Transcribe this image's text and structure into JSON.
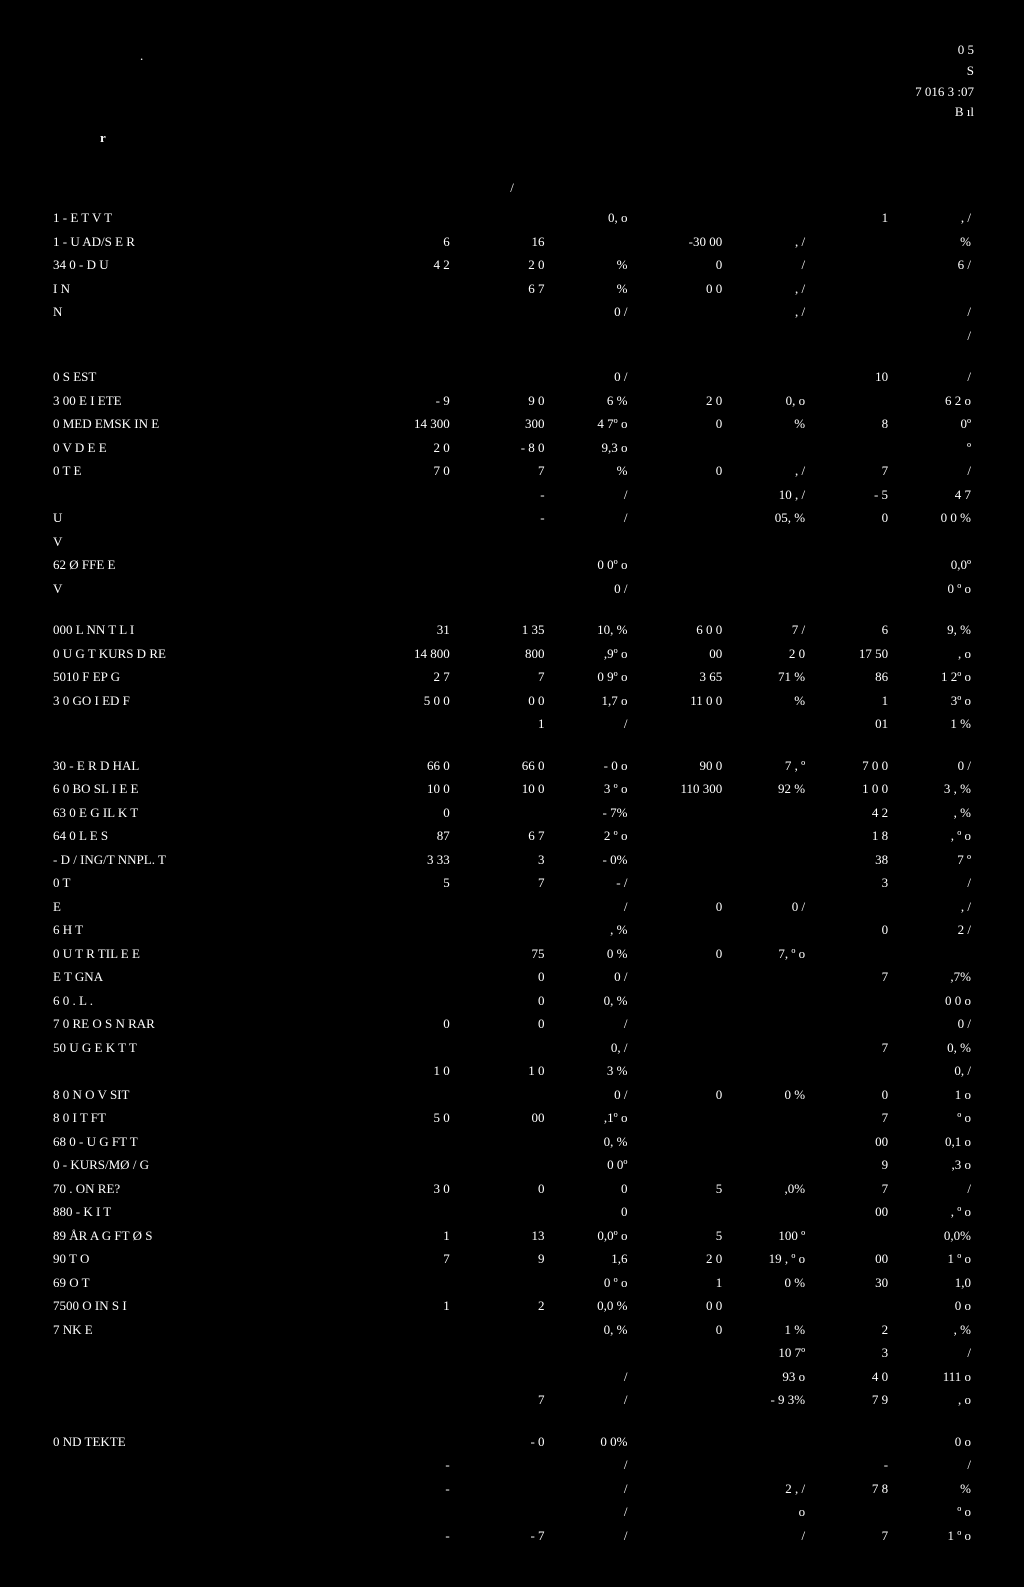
{
  "header": {
    "topRight1": "0  5",
    "topRight2": "S",
    "topRight3": "7     016    3 :07",
    "topRight4": "B  ıl",
    "dot": ".",
    "r": "r",
    "slash": "/"
  },
  "rows": [
    {
      "label": "1    -           E  T     V    T",
      "a": "",
      "b": "",
      "c": "0,  o",
      "d": "",
      "e": "",
      "f": "1",
      "g": ",  /"
    },
    {
      "label": "1    - U    AD/S E     R",
      "a": "6",
      "b": "16",
      "c": "",
      "d": "-30 00",
      "e": ",  /",
      "f": "",
      "g": "%"
    },
    {
      "label": "34  0 - D          U",
      "a": "4 2",
      "b": "2 0",
      "c": "%",
      "d": "0",
      "e": "/",
      "f": "",
      "g": "6 /"
    },
    {
      "label": "     I       N",
      "a": "",
      "b": "6 7",
      "c": "%",
      "d": "0 0",
      "e": ",  /",
      "f": "",
      "g": ""
    },
    {
      "label": "            N",
      "a": "",
      "b": "",
      "c": "0  /",
      "d": "",
      "e": ",  /",
      "f": "",
      "g": "/"
    },
    {
      "label": "",
      "a": "",
      "b": "",
      "c": "",
      "d": "",
      "e": "",
      "f": "",
      "g": "/"
    },
    {
      "spacer": true
    },
    {
      "label": "  0   S       EST",
      "a": "",
      "b": "",
      "c": "0 /",
      "d": "",
      "e": "",
      "f": "10",
      "g": "/"
    },
    {
      "label": "3  00   E     I ETE",
      "a": "-  9",
      "b": "9   0",
      "c": "6 %",
      "d": "2  0",
      "e": "0,  o",
      "f": "",
      "g": "6  2 o"
    },
    {
      "label": "  0  MED EMSK    IN  E",
      "a": "14 300",
      "b": "300",
      "c": "4 7º o",
      "d": "0",
      "e": "%",
      "f": "8",
      "g": "0º"
    },
    {
      "label": "  0    V     D     E     E",
      "a": "2   0",
      "b": "- 8 0",
      "c": "9,3 o",
      "d": "",
      "e": "",
      "f": "",
      "g": "º"
    },
    {
      "label": "  0     T     E",
      "a": "7 0",
      "b": "7",
      "c": "%",
      "d": "0",
      "e": ",  /",
      "f": "7",
      "g": "/"
    },
    {
      "label": "",
      "a": "",
      "b": "-",
      "c": "/",
      "d": "",
      "e": "10 ,  /",
      "f": "-  5",
      "g": "4 7"
    },
    {
      "label": "U",
      "a": "",
      "b": "-",
      "c": "/",
      "d": "",
      "e": "05, %",
      "f": "0",
      "g": "0  0 %"
    },
    {
      "label": "V",
      "spacer": false,
      "a": "",
      "b": "",
      "c": "",
      "d": "",
      "e": "",
      "f": "",
      "g": ""
    },
    {
      "label": "  62  Ø    FFE     E",
      "a": "",
      "b": "",
      "c": "0 0º o",
      "d": "",
      "e": "",
      "f": "",
      "g": "0,0º"
    },
    {
      "label": "    V",
      "a": "",
      "b": "",
      "c": "0  /",
      "d": "",
      "e": "",
      "f": "",
      "g": "0  º o"
    },
    {
      "spacer": true
    },
    {
      "label": "000  L  NN T  L        I",
      "a": "31",
      "b": "1  35",
      "c": "10, %",
      "d": "6  0 0",
      "e": "7 /",
      "f": "6",
      "g": "9, %"
    },
    {
      "label": "  0   U G  T       KURS    D  RE",
      "a": "14 800",
      "b": "800",
      "c": ",9º o",
      "d": "00",
      "e": "2  0",
      "f": "17  50",
      "g": ",  o"
    },
    {
      "label": "5010  F   EP   G",
      "a": "2 7",
      "b": "7",
      "c": "0 9º o",
      "d": "3  65",
      "e": "71  %",
      "f": "86",
      "g": "1 2º o"
    },
    {
      "label": " 3 0  GO    I          ED F",
      "a": "5 0 0",
      "b": "0 0",
      "c": "1,7 o",
      "d": "11 0 0",
      "e": "%",
      "f": "1",
      "g": "3º o"
    },
    {
      "label": "",
      "a": "",
      "b": "1",
      "c": "/",
      "d": "",
      "e": "",
      "f": "01",
      "g": "1  %"
    },
    {
      "spacer": true
    },
    {
      "label": " 30  - E  R D  HAL",
      "a": "66  0",
      "b": "66  0",
      "c": "-  0 o",
      "d": "90 0",
      "e": "7 ,  º",
      "f": "7  0 0",
      "g": "0  /"
    },
    {
      "label": "6  0  BO  SL I    E     E",
      "a": "10   0",
      "b": "10   0",
      "c": "3  º o",
      "d": "110 300",
      "e": "92  %",
      "f": "1  0 0",
      "g": "3 , %"
    },
    {
      "label": "63 0  E    G  IL    K      T",
      "a": "0",
      "b": "",
      "c": "-  7%",
      "d": "",
      "e": "",
      "f": "4  2",
      "g": ",  %"
    },
    {
      "label": "64 0  L  E   S",
      "a": "87",
      "b": "6  7",
      "c": "2  º o",
      "d": "",
      "e": "",
      "f": "1  8",
      "g": ",  º o"
    },
    {
      "label": "  - D        /    ING/T  NNPL.   T",
      "a": "3   33",
      "b": "3",
      "c": "-  0%",
      "d": "",
      "e": "",
      "f": "38",
      "g": "7  º"
    },
    {
      "label": "  0         T",
      "a": "5",
      "b": "7",
      "c": "-   /",
      "d": "",
      "e": "",
      "f": "3",
      "g": "/"
    },
    {
      "label": "         E",
      "a": "",
      "b": "",
      "c": "/",
      "d": "0",
      "e": "0  /",
      "f": "",
      "g": ",  /"
    },
    {
      "label": "6        H  T",
      "a": "",
      "b": "",
      "c": ",  %",
      "d": "",
      "e": "",
      "f": "0",
      "g": "2 /"
    },
    {
      "label": "  0 U  T  R TIL  E   E",
      "a": "",
      "b": "75",
      "c": "0  %",
      "d": "0",
      "e": "7,  º o",
      "f": "",
      "g": ""
    },
    {
      "label": "        E     T       GNA",
      "a": "",
      "b": "0",
      "c": "0  /",
      "d": "",
      "e": "",
      "f": "7",
      "g": ",7%"
    },
    {
      "label": "6  0    .     L   .",
      "a": "",
      "b": "0",
      "c": "0,  %",
      "d": "",
      "e": "",
      "f": "",
      "g": "0 0 o"
    },
    {
      "label": "7 0  RE     O S       N      RAR",
      "a": "0",
      "b": "0",
      "c": "/",
      "d": "",
      "e": "",
      "f": "",
      "g": "0 /"
    },
    {
      "label": "  50  U G      E    K  T     T",
      "a": "",
      "b": "",
      "c": "0,  /",
      "d": "",
      "e": "",
      "f": "7",
      "g": "0,  %"
    },
    {
      "label": "",
      "a": "1  0",
      "b": "1  0",
      "c": "3 %",
      "d": "",
      "e": "",
      "f": "",
      "g": "0,  /"
    },
    {
      "label": "8 0    N  O     V SIT",
      "a": "",
      "b": "",
      "c": "0 /",
      "d": "0",
      "e": "0 %",
      "f": "0",
      "g": "1  o"
    },
    {
      "label": "8 0    I   T       FT",
      "a": "5  0",
      "b": "00",
      "c": ",1º o",
      "d": "",
      "e": "",
      "f": "7",
      "g": "º o"
    },
    {
      "label": "68 0 - U G FT    T",
      "a": "",
      "b": "",
      "c": "0,  %",
      "d": "",
      "e": "",
      "f": "00",
      "g": "0,1 o"
    },
    {
      "label": "  0 - KURS/MØ /           G",
      "a": "",
      "b": "",
      "c": "0 0º",
      "d": "",
      "e": "",
      "f": "9",
      "g": ",3 o"
    },
    {
      "label": "70     . ON             RE?",
      "a": "3 0",
      "b": "0",
      "c": "0",
      "d": "5",
      "e": ",0%",
      "f": "7",
      "g": "/"
    },
    {
      "label": "880 - K         I    T",
      "a": "",
      "b": "",
      "c": "0",
      "d": "",
      "e": "",
      "f": "00",
      "g": ",  º o"
    },
    {
      "label": "89  ÅR A  G FT    Ø      S",
      "a": "1",
      "b": "13",
      "c": "0,0º o",
      "d": "5",
      "e": "100  º",
      "f": "",
      "g": "0,0%"
    },
    {
      "label": "90   T    O",
      "a": "7",
      "b": "9",
      "c": "1,6",
      "d": "2  0",
      "e": "19 ,  º o",
      "f": "00",
      "g": "1  º o"
    },
    {
      "label": "69      O T",
      "a": "",
      "b": "",
      "c": "0  º o",
      "d": "1",
      "e": "0  %",
      "f": "30",
      "g": "1,0"
    },
    {
      "label": "7500  O    IN S     I",
      "a": "1",
      "b": "2",
      "c": "0,0 %",
      "d": "0 0",
      "e": "",
      "f": "",
      "g": "0  o"
    },
    {
      "label": "  7    NK         E",
      "a": "",
      "b": "",
      "c": "0,  %",
      "d": "0",
      "e": "1  %",
      "f": "2",
      "g": ",  %"
    },
    {
      "label": "",
      "a": "",
      "b": "",
      "c": "",
      "d": "",
      "e": "10  7º",
      "f": "3",
      "g": "/"
    },
    {
      "label": "",
      "a": "",
      "b": "",
      "c": "/",
      "d": "",
      "e": "93  o",
      "f": "4 0",
      "g": "111  o"
    },
    {
      "label": "",
      "a": "",
      "b": "7",
      "c": "/",
      "d": "",
      "e": "- 9 3%",
      "f": "7 9",
      "g": ",  o"
    },
    {
      "spacer": true
    },
    {
      "label": "  0   ND          TEKTE",
      "a": "",
      "b": "-  0",
      "c": "0 0%",
      "d": "",
      "e": "",
      "f": "",
      "g": "0  o"
    },
    {
      "label": "",
      "a": "-",
      "b": "",
      "c": "/",
      "d": "",
      "e": "",
      "f": "-",
      "g": "/"
    },
    {
      "label": "",
      "a": "-",
      "b": "",
      "c": "/",
      "d": "",
      "e": "2 ,  /",
      "f": "7 8",
      "g": "%"
    },
    {
      "label": "",
      "a": "",
      "b": "",
      "c": "/",
      "d": "",
      "e": "o",
      "f": "",
      "g": "º o"
    },
    {
      "label": "",
      "a": "-",
      "b": "-  7",
      "c": "/",
      "d": "",
      "e": "/",
      "f": "7",
      "g": "1  º o"
    }
  ]
}
